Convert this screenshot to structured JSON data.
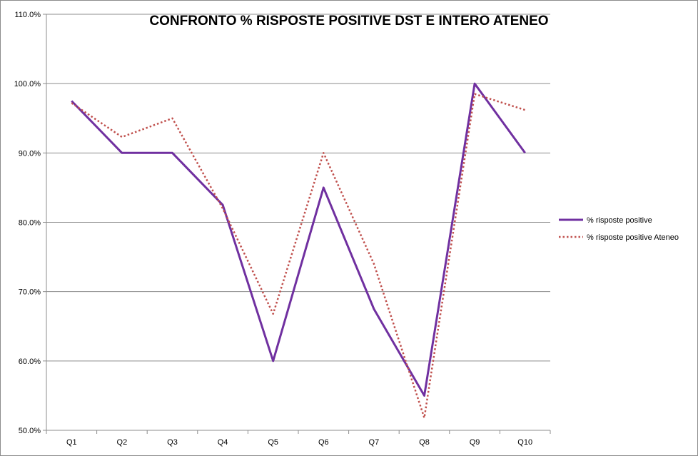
{
  "chart_data": {
    "type": "line",
    "title": "CONFRONTO % RISPOSTE POSITIVE DST E INTERO ATENEO",
    "xlabel": "",
    "ylabel": "",
    "categories": [
      "Q1",
      "Q2",
      "Q3",
      "Q4",
      "Q5",
      "Q6",
      "Q7",
      "Q8",
      "Q9",
      "Q10"
    ],
    "ylim": [
      50.0,
      110.0
    ],
    "yticks": [
      50.0,
      60.0,
      70.0,
      80.0,
      90.0,
      100.0,
      110.0
    ],
    "ytick_labels": [
      "50.0%",
      "60.0%",
      "70.0%",
      "80.0%",
      "90.0%",
      "100.0%",
      "110.0%"
    ],
    "grid": "horizontal",
    "legend_position": "right",
    "series": [
      {
        "name": "% risposte positive",
        "style": "solid",
        "color": "#7030a0",
        "values": [
          97.5,
          90.0,
          90.0,
          82.5,
          60.0,
          85.0,
          67.5,
          55.0,
          100.0,
          90.0
        ]
      },
      {
        "name": "% risposte positive Ateneo",
        "style": "dotted",
        "color": "#c0504d",
        "values": [
          97.2,
          92.3,
          95.0,
          82.0,
          66.8,
          90.0,
          74.0,
          51.8,
          98.5,
          96.2
        ]
      }
    ]
  }
}
